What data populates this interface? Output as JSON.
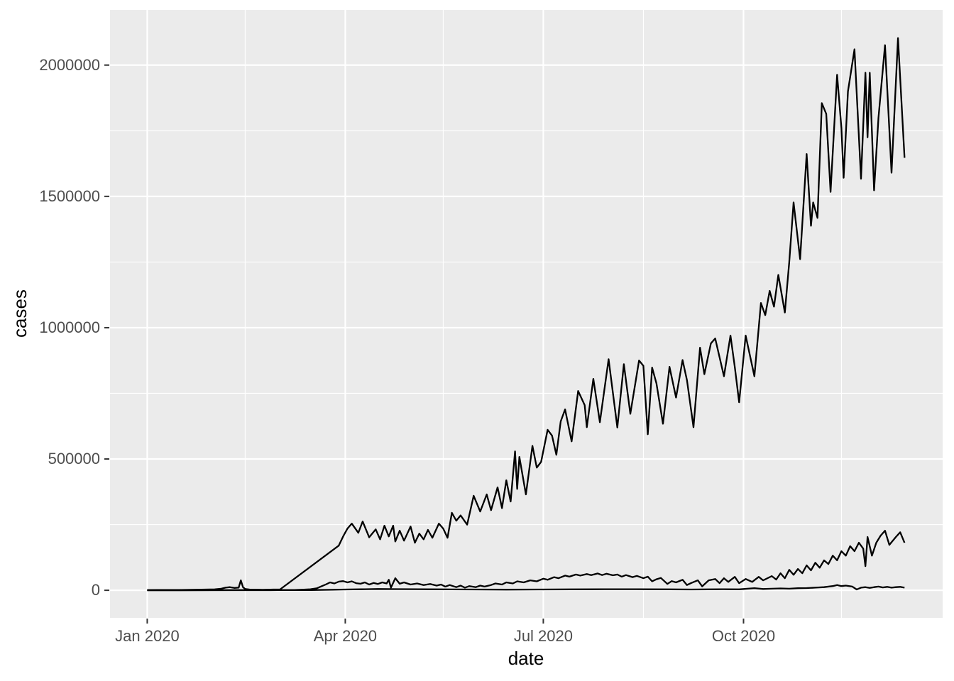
{
  "colors": {
    "panel_bg": "#EBEBEB",
    "grid": "#FFFFFF",
    "line": "#000000",
    "tick_mark": "#333333",
    "tick_label": "#4D4D4D",
    "axis_title": "#000000",
    "page_bg": "#FFFFFF"
  },
  "chart_data": {
    "type": "line",
    "title": "",
    "xlabel": "date",
    "ylabel": "cases",
    "x_unit": "days since 2020-01-01",
    "x_domain": [
      -17.1,
      365.5
    ],
    "y_domain": [
      -105000,
      2210000
    ],
    "grid": "major-and-minor",
    "legend_position": "none",
    "x_ticks": [
      {
        "day": 0,
        "label": "Jan 2020"
      },
      {
        "day": 91,
        "label": "Apr 2020"
      },
      {
        "day": 182,
        "label": "Jul 2020"
      },
      {
        "day": 274,
        "label": "Oct 2020"
      }
    ],
    "x_minor_days": [
      45,
      136,
      228,
      319
    ],
    "y_ticks": [
      {
        "value": 0,
        "label": "0"
      },
      {
        "value": 500000,
        "label": "500000"
      },
      {
        "value": 1000000,
        "label": "1000000"
      },
      {
        "value": 1500000,
        "label": "1500000"
      },
      {
        "value": 2000000,
        "label": "2000000"
      }
    ],
    "y_minor": [
      250000,
      750000,
      1250000,
      1750000
    ],
    "series": [
      {
        "name": "series-1-top",
        "points": [
          [
            0,
            1000
          ],
          [
            5,
            1200
          ],
          [
            10,
            1500
          ],
          [
            15,
            1500
          ],
          [
            20,
            2000
          ],
          [
            25,
            2500
          ],
          [
            31,
            3500
          ],
          [
            34,
            6000
          ],
          [
            36,
            10000
          ],
          [
            38,
            12000
          ],
          [
            40,
            9000
          ],
          [
            42,
            10000
          ],
          [
            43,
            38000
          ],
          [
            44,
            12000
          ],
          [
            45,
            5000
          ],
          [
            47,
            3000
          ],
          [
            50,
            2500
          ],
          [
            53,
            2000
          ],
          [
            56,
            2500
          ],
          [
            58,
            3000
          ],
          [
            61,
            3000
          ],
          [
            88,
            170000
          ],
          [
            90,
            205000
          ],
          [
            92,
            235000
          ],
          [
            94,
            254000
          ],
          [
            97,
            219000
          ],
          [
            99,
            262000
          ],
          [
            102,
            202000
          ],
          [
            105,
            232000
          ],
          [
            107,
            194000
          ],
          [
            109,
            246000
          ],
          [
            111,
            205000
          ],
          [
            113,
            246000
          ],
          [
            114,
            186000
          ],
          [
            116,
            227000
          ],
          [
            118,
            189000
          ],
          [
            121,
            243000
          ],
          [
            123,
            181000
          ],
          [
            125,
            216000
          ],
          [
            127,
            194000
          ],
          [
            129,
            230000
          ],
          [
            131,
            200000
          ],
          [
            134,
            254000
          ],
          [
            136,
            235000
          ],
          [
            138,
            200000
          ],
          [
            140,
            295000
          ],
          [
            142,
            265000
          ],
          [
            144,
            285000
          ],
          [
            147,
            250000
          ],
          [
            150,
            360000
          ],
          [
            153,
            300000
          ],
          [
            156,
            365000
          ],
          [
            158,
            305000
          ],
          [
            161,
            392000
          ],
          [
            163,
            313000
          ],
          [
            165,
            419000
          ],
          [
            167,
            338000
          ],
          [
            169,
            529000
          ],
          [
            170,
            386000
          ],
          [
            171,
            508000
          ],
          [
            174,
            365000
          ],
          [
            177,
            550000
          ],
          [
            179,
            467000
          ],
          [
            181,
            489000
          ],
          [
            184,
            611000
          ],
          [
            186,
            589000
          ],
          [
            188,
            516000
          ],
          [
            190,
            643000
          ],
          [
            192,
            689000
          ],
          [
            195,
            567000
          ],
          [
            198,
            759000
          ],
          [
            201,
            705000
          ],
          [
            202,
            621000
          ],
          [
            205,
            805000
          ],
          [
            208,
            640000
          ],
          [
            212,
            880000
          ],
          [
            216,
            620000
          ],
          [
            219,
            861000
          ],
          [
            222,
            672000
          ],
          [
            226,
            875000
          ],
          [
            228,
            855000
          ],
          [
            230,
            594000
          ],
          [
            232,
            848000
          ],
          [
            234,
            788000
          ],
          [
            237,
            634000
          ],
          [
            240,
            851000
          ],
          [
            243,
            734000
          ],
          [
            246,
            877000
          ],
          [
            248,
            800000
          ],
          [
            251,
            621000
          ],
          [
            254,
            924000
          ],
          [
            256,
            823000
          ],
          [
            259,
            940000
          ],
          [
            261,
            959000
          ],
          [
            265,
            815000
          ],
          [
            268,
            970000
          ],
          [
            270,
            850000
          ],
          [
            272,
            716000
          ],
          [
            275,
            970000
          ],
          [
            279,
            815000
          ],
          [
            282,
            1094000
          ],
          [
            284,
            1048000
          ],
          [
            286,
            1140000
          ],
          [
            288,
            1080000
          ],
          [
            290,
            1201000
          ],
          [
            293,
            1058000
          ],
          [
            295,
            1250000
          ],
          [
            297,
            1477000
          ],
          [
            300,
            1261000
          ],
          [
            303,
            1661000
          ],
          [
            305,
            1388000
          ],
          [
            306,
            1477000
          ],
          [
            308,
            1418000
          ],
          [
            310,
            1855000
          ],
          [
            312,
            1814000
          ],
          [
            314,
            1517000
          ],
          [
            317,
            1963000
          ],
          [
            319,
            1760000
          ],
          [
            320,
            1571000
          ],
          [
            322,
            1900000
          ],
          [
            325,
            2060000
          ],
          [
            328,
            1567000
          ],
          [
            330,
            1971000
          ],
          [
            331,
            1725000
          ],
          [
            332,
            1971000
          ],
          [
            334,
            1523000
          ],
          [
            336,
            1800000
          ],
          [
            339,
            2076000
          ],
          [
            342,
            1590000
          ],
          [
            345,
            2103000
          ],
          [
            348,
            1647000
          ]
        ]
      },
      {
        "name": "series-2-middle",
        "points": [
          [
            0,
            300
          ],
          [
            30,
            500
          ],
          [
            60,
            800
          ],
          [
            68,
            1500
          ],
          [
            72,
            2500
          ],
          [
            75,
            4000
          ],
          [
            78,
            8000
          ],
          [
            80,
            15000
          ],
          [
            82,
            22000
          ],
          [
            84,
            30000
          ],
          [
            86,
            26000
          ],
          [
            88,
            33000
          ],
          [
            90,
            35000
          ],
          [
            92,
            30000
          ],
          [
            94,
            34000
          ],
          [
            96,
            27000
          ],
          [
            98,
            25000
          ],
          [
            100,
            30000
          ],
          [
            102,
            22000
          ],
          [
            104,
            28000
          ],
          [
            106,
            24000
          ],
          [
            108,
            30000
          ],
          [
            110,
            26000
          ],
          [
            111,
            40000
          ],
          [
            112,
            10000
          ],
          [
            114,
            46000
          ],
          [
            116,
            25000
          ],
          [
            118,
            30000
          ],
          [
            121,
            22000
          ],
          [
            124,
            26000
          ],
          [
            127,
            20000
          ],
          [
            130,
            24000
          ],
          [
            133,
            18000
          ],
          [
            135,
            22000
          ],
          [
            137,
            14000
          ],
          [
            139,
            20000
          ],
          [
            142,
            12000
          ],
          [
            144,
            18000
          ],
          [
            146,
            10000
          ],
          [
            148,
            16000
          ],
          [
            151,
            12000
          ],
          [
            153,
            18000
          ],
          [
            155,
            14000
          ],
          [
            158,
            20000
          ],
          [
            160,
            26000
          ],
          [
            163,
            22000
          ],
          [
            165,
            30000
          ],
          [
            168,
            26000
          ],
          [
            170,
            34000
          ],
          [
            173,
            30000
          ],
          [
            176,
            38000
          ],
          [
            179,
            34000
          ],
          [
            182,
            44000
          ],
          [
            184,
            40000
          ],
          [
            187,
            50000
          ],
          [
            189,
            46000
          ],
          [
            192,
            56000
          ],
          [
            194,
            52000
          ],
          [
            197,
            60000
          ],
          [
            199,
            56000
          ],
          [
            202,
            62000
          ],
          [
            204,
            58000
          ],
          [
            207,
            64000
          ],
          [
            209,
            58000
          ],
          [
            211,
            63000
          ],
          [
            214,
            57000
          ],
          [
            216,
            60000
          ],
          [
            218,
            52000
          ],
          [
            220,
            58000
          ],
          [
            223,
            50000
          ],
          [
            225,
            55000
          ],
          [
            228,
            46000
          ],
          [
            230,
            52000
          ],
          [
            232,
            34000
          ],
          [
            234,
            42000
          ],
          [
            236,
            47000
          ],
          [
            239,
            24000
          ],
          [
            241,
            35000
          ],
          [
            243,
            30000
          ],
          [
            246,
            40000
          ],
          [
            248,
            20000
          ],
          [
            250,
            28000
          ],
          [
            253,
            38000
          ],
          [
            255,
            15000
          ],
          [
            258,
            38000
          ],
          [
            261,
            43000
          ],
          [
            263,
            27000
          ],
          [
            265,
            46000
          ],
          [
            267,
            32000
          ],
          [
            270,
            51000
          ],
          [
            272,
            27000
          ],
          [
            275,
            43000
          ],
          [
            278,
            32000
          ],
          [
            281,
            51000
          ],
          [
            283,
            38000
          ],
          [
            287,
            54000
          ],
          [
            289,
            41000
          ],
          [
            291,
            65000
          ],
          [
            293,
            46000
          ],
          [
            295,
            78000
          ],
          [
            297,
            59000
          ],
          [
            299,
            81000
          ],
          [
            301,
            65000
          ],
          [
            303,
            95000
          ],
          [
            305,
            76000
          ],
          [
            307,
            105000
          ],
          [
            309,
            86000
          ],
          [
            311,
            114000
          ],
          [
            313,
            100000
          ],
          [
            315,
            132000
          ],
          [
            317,
            114000
          ],
          [
            319,
            149000
          ],
          [
            321,
            132000
          ],
          [
            323,
            168000
          ],
          [
            325,
            149000
          ],
          [
            327,
            181000
          ],
          [
            329,
            159000
          ],
          [
            330,
            92000
          ],
          [
            331,
            203000
          ],
          [
            333,
            132000
          ],
          [
            335,
            181000
          ],
          [
            337,
            208000
          ],
          [
            339,
            227000
          ],
          [
            341,
            173000
          ],
          [
            344,
            203000
          ],
          [
            346,
            221000
          ],
          [
            348,
            181000
          ]
        ]
      },
      {
        "name": "series-3-bottom",
        "points": [
          [
            0,
            200
          ],
          [
            40,
            300
          ],
          [
            60,
            500
          ],
          [
            75,
            1000
          ],
          [
            85,
            2000
          ],
          [
            91,
            3000
          ],
          [
            100,
            4000
          ],
          [
            106,
            5000
          ],
          [
            115,
            4500
          ],
          [
            125,
            4000
          ],
          [
            135,
            3500
          ],
          [
            150,
            3000
          ],
          [
            165,
            2500
          ],
          [
            180,
            3000
          ],
          [
            195,
            3500
          ],
          [
            210,
            4000
          ],
          [
            225,
            4000
          ],
          [
            240,
            3500
          ],
          [
            250,
            3000
          ],
          [
            258,
            3500
          ],
          [
            265,
            4000
          ],
          [
            272,
            3500
          ],
          [
            279,
            8000
          ],
          [
            283,
            5000
          ],
          [
            287,
            6000
          ],
          [
            291,
            7000
          ],
          [
            295,
            6000
          ],
          [
            299,
            8000
          ],
          [
            303,
            8500
          ],
          [
            307,
            10000
          ],
          [
            311,
            12000
          ],
          [
            315,
            16000
          ],
          [
            317,
            20000
          ],
          [
            319,
            16000
          ],
          [
            321,
            18000
          ],
          [
            324,
            14000
          ],
          [
            326,
            3000
          ],
          [
            328,
            10000
          ],
          [
            330,
            12000
          ],
          [
            332,
            9000
          ],
          [
            334,
            12000
          ],
          [
            336,
            14000
          ],
          [
            338,
            11000
          ],
          [
            340,
            13000
          ],
          [
            342,
            10000
          ],
          [
            344,
            12000
          ],
          [
            346,
            13000
          ],
          [
            348,
            10000
          ]
        ]
      }
    ]
  }
}
